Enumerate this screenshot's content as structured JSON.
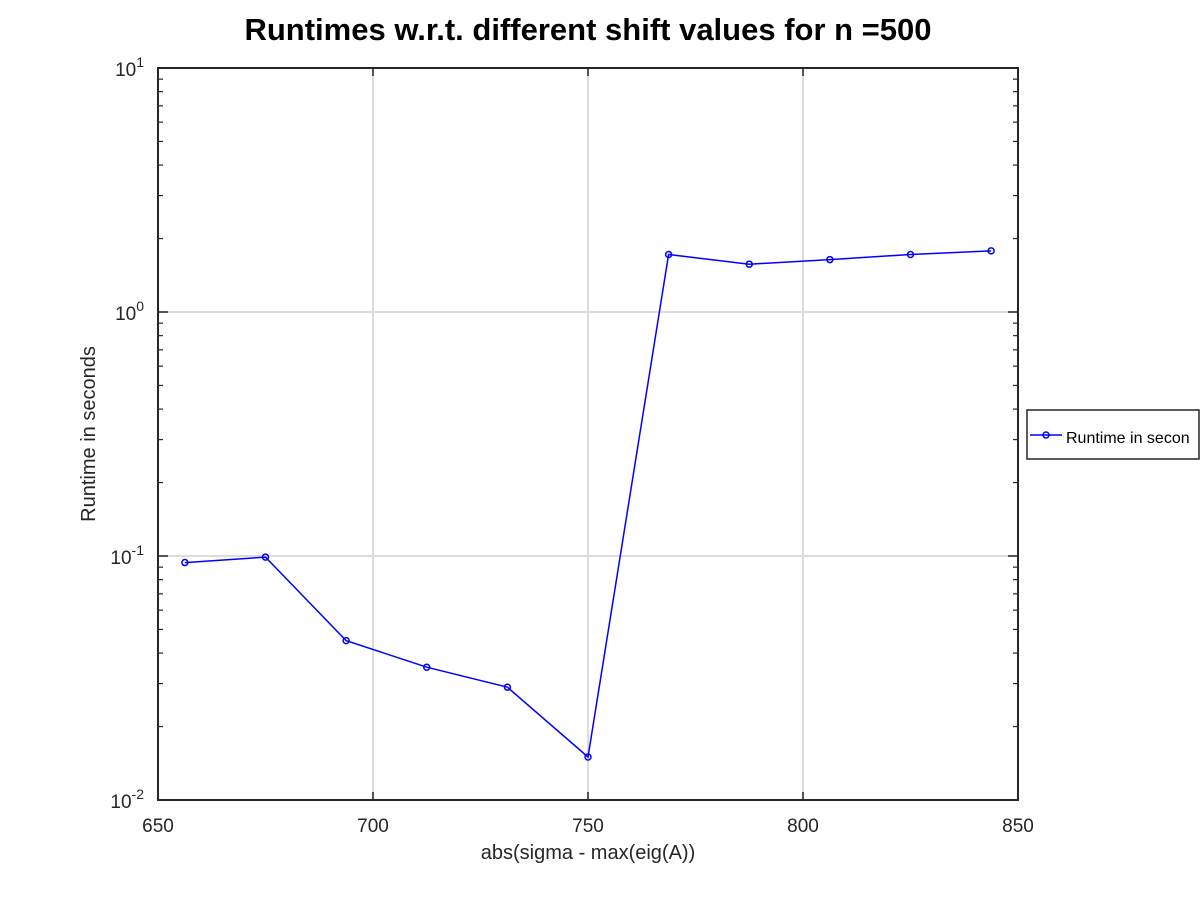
{
  "chart_data": {
    "type": "line",
    "title": "Runtimes w.r.t. different shift values for n =500",
    "xlabel": "abs(sigma - max(eig(A))",
    "ylabel": "Runtime in seconds",
    "x_scale": "linear",
    "y_scale": "log",
    "xlim": [
      650,
      850
    ],
    "ylim": [
      0.01,
      10
    ],
    "x_ticks": [
      650,
      700,
      750,
      800,
      850
    ],
    "y_ticks": [
      {
        "value": 0.01,
        "base": "10",
        "exp": "-2"
      },
      {
        "value": 0.1,
        "base": "10",
        "exp": "-1"
      },
      {
        "value": 1,
        "base": "10",
        "exp": "0"
      },
      {
        "value": 10,
        "base": "10",
        "exp": "1"
      }
    ],
    "grid": true,
    "legend_position": "outside-right",
    "series": [
      {
        "name": "Runtime in seconds",
        "legend_visible_text": "Runtime in secon",
        "color": "#0000ff",
        "marker": "circle",
        "x": [
          656.25,
          675,
          693.75,
          712.5,
          731.25,
          750,
          768.75,
          787.5,
          806.25,
          825,
          843.75
        ],
        "y": [
          0.094,
          0.099,
          0.045,
          0.035,
          0.029,
          0.015,
          1.72,
          1.57,
          1.64,
          1.72,
          1.78
        ]
      }
    ]
  }
}
